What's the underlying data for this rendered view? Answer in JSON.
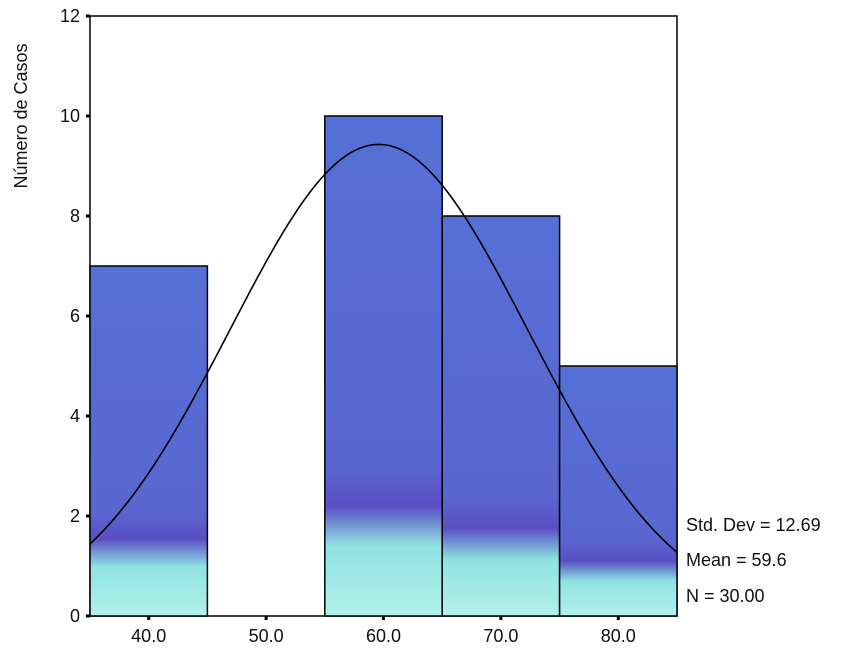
{
  "chart_data": {
    "type": "bar",
    "subtype": "histogram",
    "bin_width": 10,
    "x_range": [
      35,
      85
    ],
    "bins": [
      {
        "center": 40,
        "count": 7
      },
      {
        "center": 50,
        "count": 0
      },
      {
        "center": 60,
        "count": 10
      },
      {
        "center": 70,
        "count": 8
      },
      {
        "center": 80,
        "count": 5
      }
    ],
    "x_ticks": [
      40,
      50,
      60,
      70,
      80
    ],
    "x_tick_labels": [
      "40.0",
      "50.0",
      "60.0",
      "70.0",
      "80.0"
    ],
    "ylim": [
      0,
      12
    ],
    "y_ticks": [
      0,
      2,
      4,
      6,
      8,
      10,
      12
    ],
    "y_tick_labels": [
      "0",
      "2",
      "4",
      "6",
      "8",
      "10",
      "12"
    ],
    "ylabel": "Número de Casos",
    "xlabel": "",
    "normal_curve": {
      "mean": 59.6,
      "std_dev": 12.69,
      "n": 30
    },
    "stats": {
      "std_dev_label": "Std. Dev = 12.69",
      "mean_label": "Mean = 59.6",
      "n_label": "N = 30.00"
    },
    "grid": false,
    "colors": {
      "bar_top": "#5570d6",
      "bar_mid": "#5a4fc4",
      "bar_bottom": "#8fe3e2",
      "outline": "#000000",
      "curve": "#000000"
    }
  }
}
